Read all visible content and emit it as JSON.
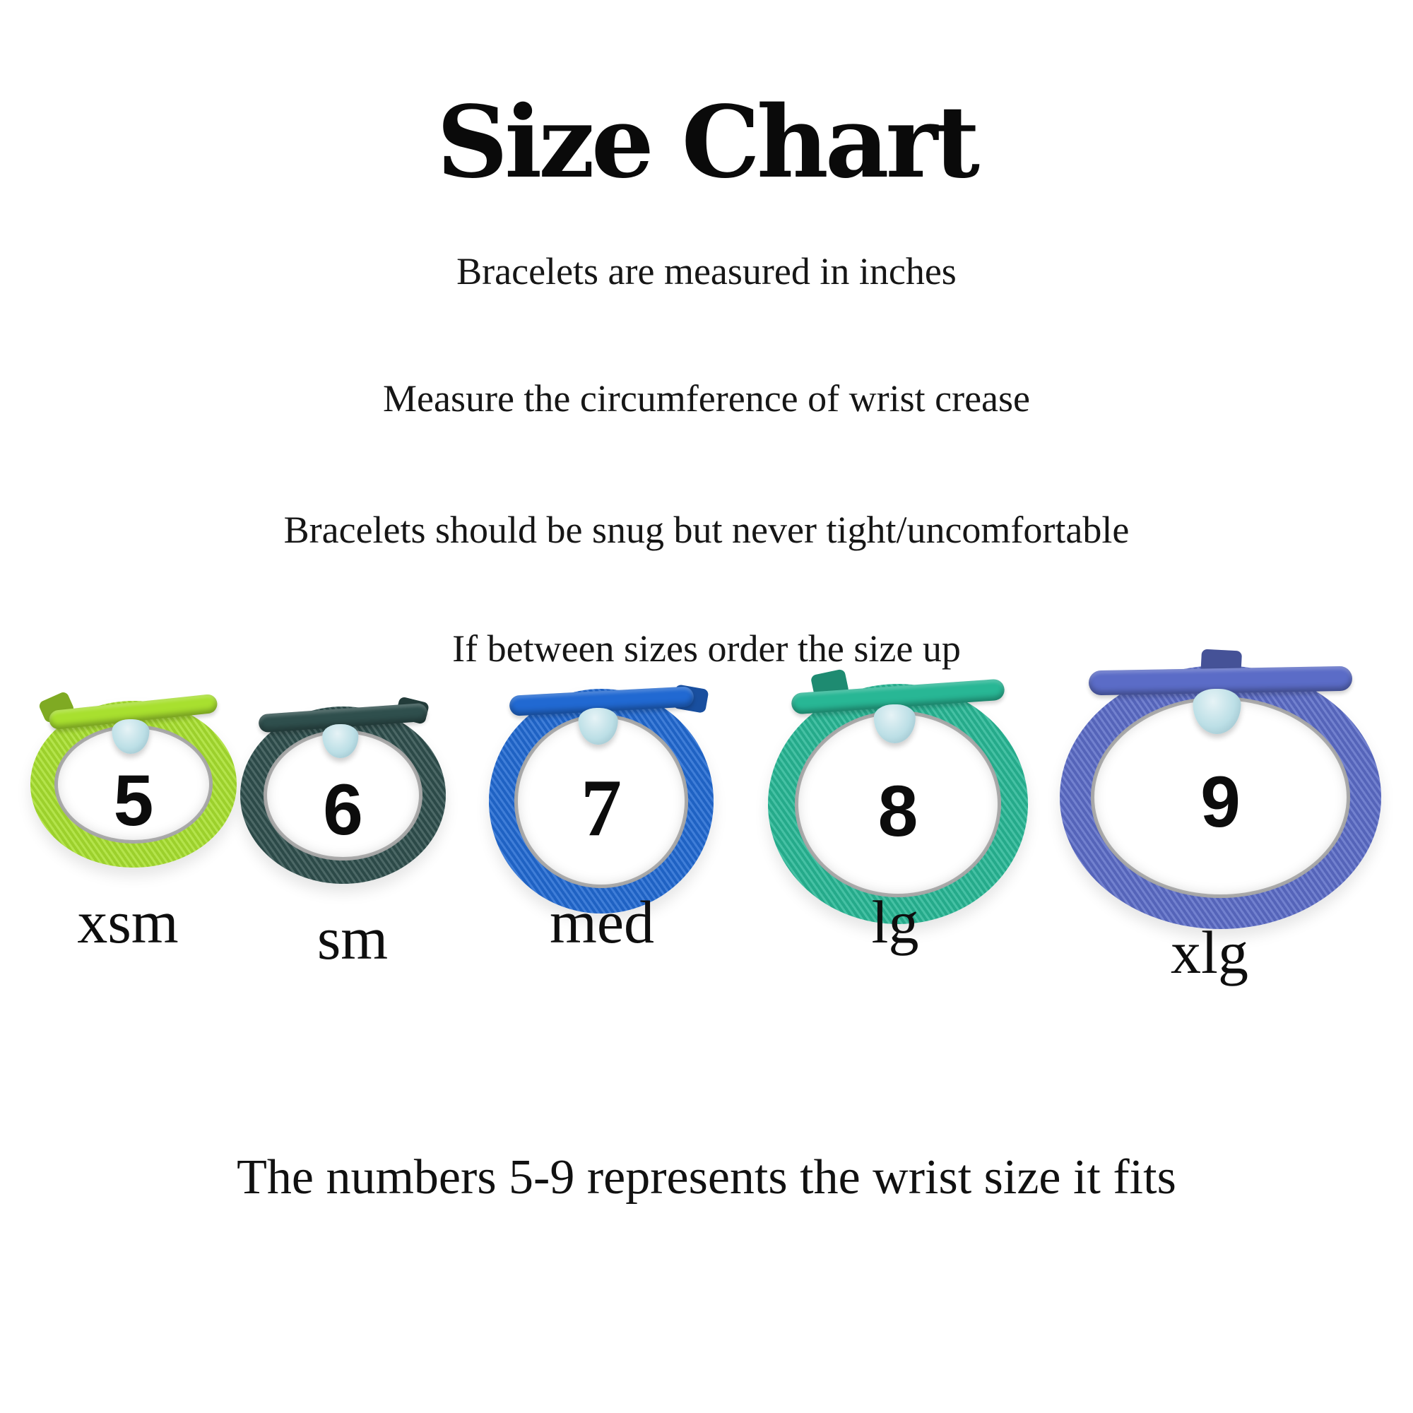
{
  "page": {
    "title": "Size Chart",
    "instructions": [
      "Bracelets are measured in inches",
      "Measure the circumference of wrist crease",
      "Bracelets should be snug but never tight/uncomfortable",
      "If between sizes order the size up"
    ],
    "footnote": "The numbers 5-9 represents the wrist size it fits"
  },
  "sizes": {
    "bead_color": "#bcdfe6",
    "items": [
      {
        "number": "5",
        "label": "xsm",
        "wrist_inches": "5",
        "band_color": "#a8e02f"
      },
      {
        "number": "6",
        "label": "sm",
        "wrist_inches": "6",
        "band_color": "#2f4f4d"
      },
      {
        "number": "7",
        "label": "med",
        "wrist_inches": "7",
        "band_color": "#2169d2"
      },
      {
        "number": "8",
        "label": "lg",
        "wrist_inches": "8",
        "band_color": "#28b795"
      },
      {
        "number": "9",
        "label": "xlg",
        "wrist_inches": "9",
        "band_color": "#5b6cc7"
      }
    ]
  },
  "colors": {
    "background": "#ffffff",
    "text": "#111111"
  }
}
